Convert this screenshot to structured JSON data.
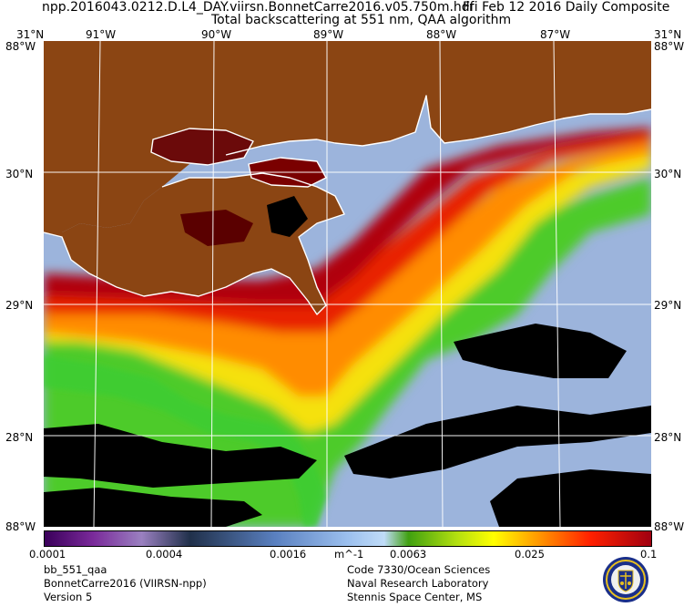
{
  "header": {
    "file_name": "npp.2016043.0212.D.L4_DAY.viirsn.BonnetCarre2016.v05.750m.hdf",
    "composite_label": "Fri Feb 12 2016 Daily Composite",
    "product_title": "Total backscattering at 551 nm, QAA algorithm"
  },
  "axes": {
    "top_left_corner": "31°N",
    "top_left_corner_lon": "88°W",
    "top_right_corner": "31°N",
    "top_right_corner_lon": "88°W",
    "bottom_left_corner": "88°W",
    "bottom_right_corner": "88°W",
    "longitudes": [
      "91°W",
      "90°W",
      "89°W",
      "88°W",
      "87°W"
    ],
    "latitudes": [
      "30°N",
      "29°N",
      "28°N"
    ]
  },
  "colorbar": {
    "ticks": [
      "0.0001",
      "0.0004",
      "0.0016",
      "m^-1",
      "0.0063",
      "0.025",
      "0.1"
    ],
    "scale": "log"
  },
  "footer": {
    "product_name": "bb_551_qaa",
    "dataset": "BonnetCarre2016 (VIIRSN-npp)",
    "version": "Version 5",
    "org_line1": "Code 7330/Ocean Sciences",
    "org_line2": "Naval Research Laboratory",
    "org_line3": "Stennis Space Center, MS"
  },
  "colors": {
    "land": "#8b4513",
    "deep_water": "#9cb4dc",
    "turbid_max": "#c8000c",
    "mid": "#ffa500",
    "green": "#33cc33",
    "cloud_mask": "#000000",
    "graticule": "#ffffff"
  },
  "logo_icon": "nrl-seal-icon"
}
